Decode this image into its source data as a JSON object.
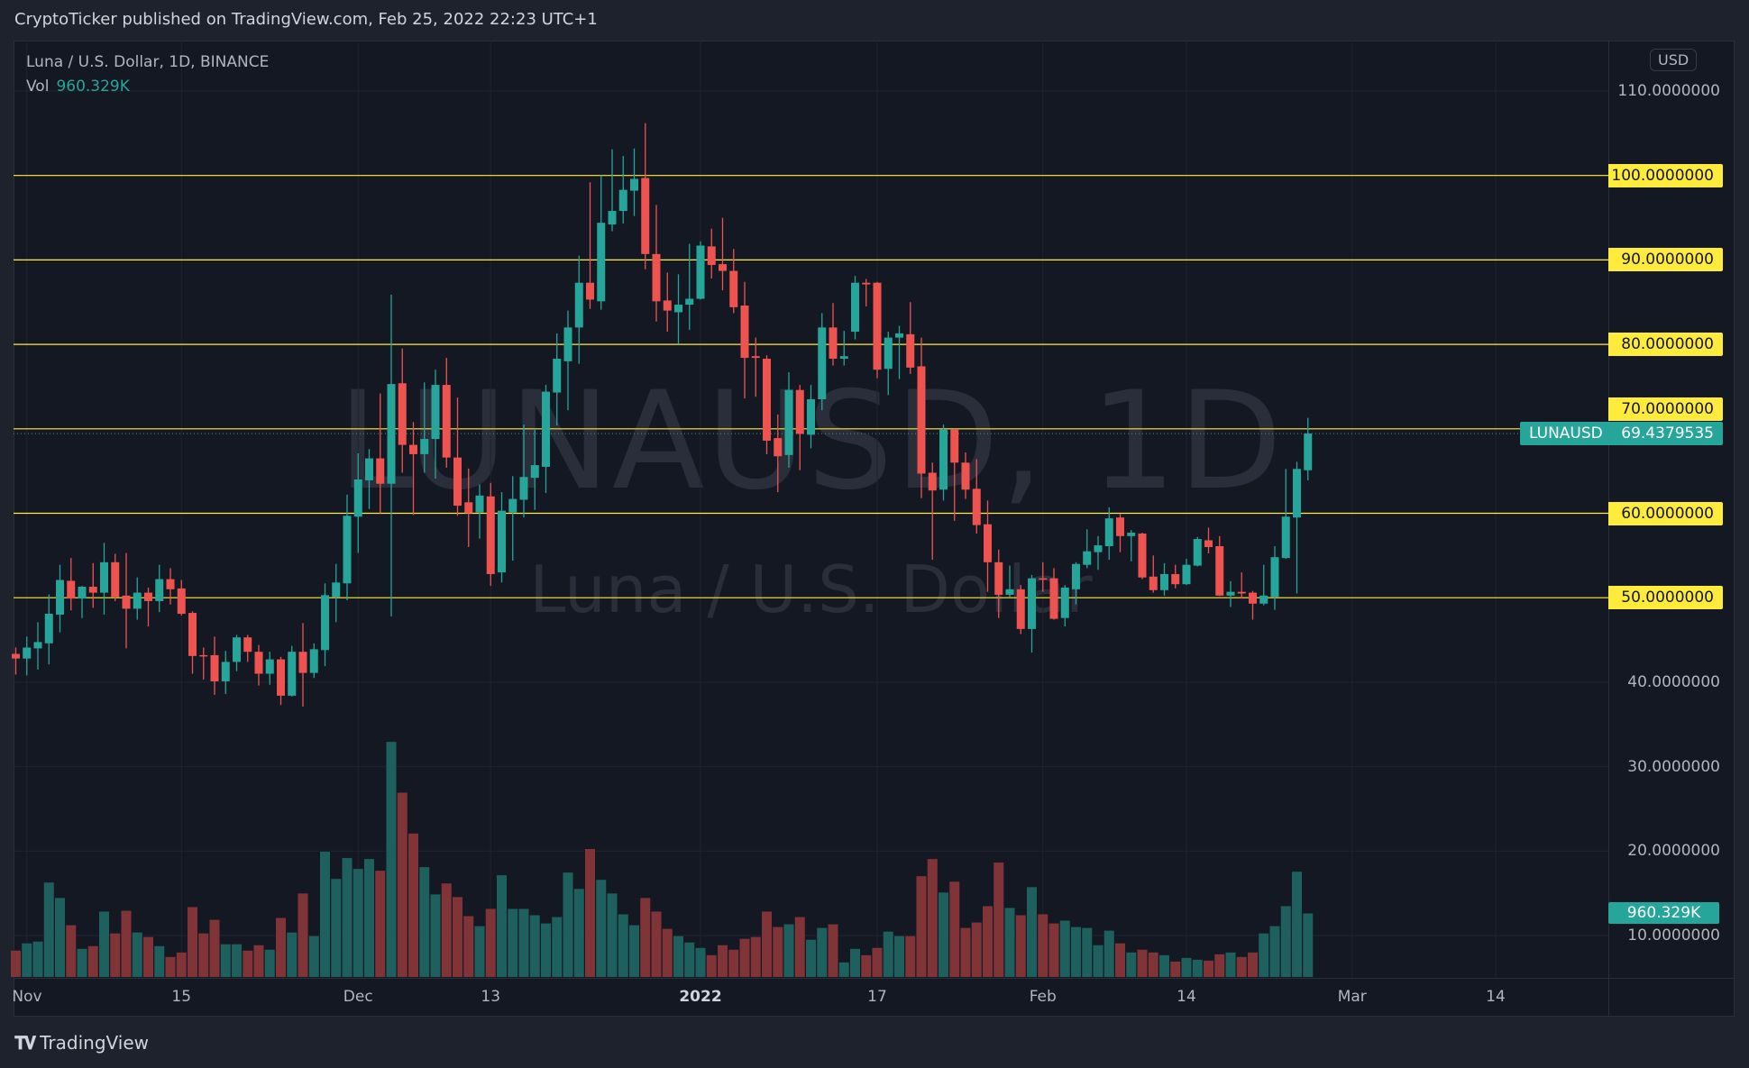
{
  "header": {
    "published": "CryptoTicker published on TradingView.com, Feb 25, 2022 22:23 UTC+1"
  },
  "legend": {
    "symbol": "Luna / U.S. Dollar, 1D, BINANCE",
    "vol_label": "Vol",
    "vol_value": "960.329K"
  },
  "watermark": {
    "line1": "LUNAUSD, 1D",
    "line2": "Luna / U.S. Dollar"
  },
  "price_axis": {
    "currency_button": "USD",
    "ticks": [
      "110.0000000",
      "100.0000000",
      "90.0000000",
      "80.0000000",
      "70.0000000",
      "60.0000000",
      "50.0000000",
      "40.0000000",
      "30.0000000",
      "20.0000000",
      "10.0000000"
    ],
    "last_price_symbol": "LUNAUSD",
    "last_price": "69.4379535",
    "volume_tag": "960.329K"
  },
  "time_axis": {
    "ticks": [
      "Nov",
      "15",
      "Dec",
      "13",
      "2022",
      "17",
      "Feb",
      "14",
      "Mar",
      "14"
    ]
  },
  "footer": {
    "brand": "TradingView",
    "logo": "TV"
  },
  "colors": {
    "up": "#26a69a",
    "down": "#ef5350",
    "up_volume": "#1d605e",
    "down_volume": "#813437",
    "level_line": "#ffeb3b",
    "background": "#141823"
  },
  "chart_data": {
    "type": "candlestick",
    "title": "Luna / U.S. Dollar, 1D, BINANCE",
    "ylim": [
      0,
      115
    ],
    "y_scale": "linear",
    "grid": true,
    "horizontal_levels": [
      50,
      60,
      70,
      80,
      90,
      100
    ],
    "last_price": 69.4379535,
    "candle_fields": [
      "date",
      "open",
      "high",
      "low",
      "close",
      "volume_k"
    ],
    "candles": [
      [
        "2021-10-31",
        43.35,
        44.1,
        40.9,
        42.8,
        398
      ],
      [
        "2021-11-01",
        42.8,
        45.4,
        40.8,
        44.1,
        508
      ],
      [
        "2021-11-02",
        44.0,
        47.1,
        41.5,
        44.75,
        535
      ],
      [
        "2021-11-03",
        44.6,
        50.4,
        42.1,
        48.1,
        1427
      ],
      [
        "2021-11-04",
        48.0,
        53.9,
        45.9,
        52.1,
        1194
      ],
      [
        "2021-11-05",
        52.0,
        54.7,
        48.5,
        49.9,
        782
      ],
      [
        "2021-11-06",
        49.9,
        51.4,
        47.6,
        51.3,
        425
      ],
      [
        "2021-11-07",
        51.3,
        54.1,
        48.8,
        50.6,
        466
      ],
      [
        "2021-11-08",
        50.6,
        56.5,
        48.0,
        54.2,
        988
      ],
      [
        "2021-11-09",
        54.2,
        55.2,
        49.6,
        50.1,
        658
      ],
      [
        "2021-11-10",
        50.25,
        55.3,
        44.0,
        48.7,
        1001
      ],
      [
        "2021-11-11",
        48.7,
        52.4,
        47.4,
        50.6,
        672
      ],
      [
        "2021-11-12",
        50.6,
        51.2,
        46.6,
        49.6,
        604
      ],
      [
        "2021-11-13",
        49.6,
        53.9,
        48.3,
        52.2,
        466
      ],
      [
        "2021-11-14",
        52.2,
        53.5,
        49.2,
        51.0,
        302
      ],
      [
        "2021-11-15",
        51.1,
        52.1,
        47.9,
        48.1,
        370
      ],
      [
        "2021-11-16",
        48.2,
        48.4,
        41.0,
        43.1,
        1056
      ],
      [
        "2021-11-17",
        43.2,
        44.1,
        40.3,
        43.1,
        658
      ],
      [
        "2021-11-18",
        43.2,
        45.4,
        38.5,
        40.1,
        864
      ],
      [
        "2021-11-19",
        40.1,
        43.7,
        38.6,
        42.4,
        494
      ],
      [
        "2021-11-20",
        42.4,
        45.6,
        41.3,
        45.3,
        494
      ],
      [
        "2021-11-21",
        45.3,
        45.6,
        42.4,
        43.6,
        398
      ],
      [
        "2021-11-22",
        43.6,
        44.4,
        39.6,
        41.0,
        480
      ],
      [
        "2021-11-23",
        41.0,
        43.6,
        39.7,
        42.7,
        412
      ],
      [
        "2021-11-24",
        42.7,
        43.0,
        37.3,
        38.4,
        892
      ],
      [
        "2021-11-25",
        38.4,
        44.3,
        38.3,
        43.6,
        672
      ],
      [
        "2021-11-26",
        43.6,
        47.0,
        37.1,
        41.1,
        1262
      ],
      [
        "2021-11-27",
        41.1,
        44.6,
        40.5,
        43.9,
        617
      ],
      [
        "2021-11-28",
        43.8,
        51.7,
        41.9,
        50.3,
        1893
      ],
      [
        "2021-11-29",
        50.1,
        54.0,
        47.1,
        51.8,
        1482
      ],
      [
        "2021-11-30",
        51.7,
        62.2,
        49.7,
        59.7,
        1797
      ],
      [
        "2021-12-01",
        59.6,
        67.1,
        55.3,
        64.0,
        1633
      ],
      [
        "2021-12-02",
        63.9,
        67.6,
        60.5,
        66.5,
        1783
      ],
      [
        "2021-12-03",
        66.5,
        74.2,
        60.0,
        63.5,
        1605
      ],
      [
        "2021-12-04",
        63.5,
        85.9,
        47.8,
        75.3,
        3553
      ],
      [
        "2021-12-05",
        75.4,
        79.5,
        64.8,
        68.1,
        2785
      ],
      [
        "2021-12-06",
        68.1,
        70.8,
        59.8,
        67.0,
        2168
      ],
      [
        "2021-12-07",
        67.0,
        75.5,
        64.8,
        68.8,
        1660
      ],
      [
        "2021-12-08",
        68.8,
        77.0,
        64.1,
        75.2,
        1248
      ],
      [
        "2021-12-09",
        75.2,
        78.4,
        65.4,
        66.6,
        1413
      ],
      [
        "2021-12-10",
        66.6,
        73.7,
        59.7,
        60.9,
        1207
      ],
      [
        "2021-12-11",
        61.3,
        65.3,
        56.0,
        60.0,
        919
      ],
      [
        "2021-12-12",
        60.1,
        63.4,
        57.0,
        62.1,
        768
      ],
      [
        "2021-12-13",
        62.0,
        63.6,
        51.4,
        52.8,
        1029
      ],
      [
        "2021-12-14",
        53.0,
        62.5,
        51.8,
        60.3,
        1537
      ],
      [
        "2021-12-15",
        60.1,
        64.4,
        54.4,
        61.7,
        1029
      ],
      [
        "2021-12-16",
        61.6,
        70.5,
        59.5,
        64.3,
        1029
      ],
      [
        "2021-12-17",
        64.2,
        70.0,
        60.4,
        65.7,
        933
      ],
      [
        "2021-12-18",
        65.5,
        75.2,
        62.4,
        74.4,
        809
      ],
      [
        "2021-12-19",
        74.3,
        81.3,
        70.4,
        78.3,
        905
      ],
      [
        "2021-12-20",
        78.0,
        84.0,
        72.2,
        82.0,
        1578
      ],
      [
        "2021-12-21",
        82.0,
        90.5,
        77.7,
        87.3,
        1331
      ],
      [
        "2021-12-22",
        87.3,
        99.2,
        84.2,
        85.3,
        1934
      ],
      [
        "2021-12-23",
        85.1,
        100.0,
        84.1,
        94.4,
        1468
      ],
      [
        "2021-12-24",
        94.2,
        103.1,
        93.4,
        95.8,
        1262
      ],
      [
        "2021-12-25",
        95.8,
        102.3,
        94.3,
        98.3,
        947
      ],
      [
        "2021-12-26",
        98.2,
        103.2,
        95.2,
        99.6,
        782
      ],
      [
        "2021-12-27",
        99.7,
        106.2,
        88.9,
        90.7,
        1194
      ],
      [
        "2021-12-28",
        90.7,
        96.5,
        82.7,
        85.1,
        988
      ],
      [
        "2021-12-29",
        85.2,
        88.5,
        81.5,
        84.0,
        727
      ],
      [
        "2021-12-30",
        83.8,
        88.3,
        80.1,
        84.7,
        617
      ],
      [
        "2021-12-31",
        84.7,
        91.9,
        81.7,
        85.4,
        521
      ],
      [
        "2022-01-01",
        85.4,
        92.2,
        85.3,
        91.7,
        439
      ],
      [
        "2022-01-02",
        91.6,
        93.7,
        87.8,
        89.4,
        329
      ],
      [
        "2022-01-03",
        89.5,
        95.0,
        86.4,
        88.7,
        480
      ],
      [
        "2022-01-04",
        88.7,
        91.3,
        83.7,
        84.4,
        412
      ],
      [
        "2022-01-05",
        84.6,
        87.4,
        73.6,
        78.4,
        576
      ],
      [
        "2022-01-06",
        78.6,
        80.8,
        73.8,
        78.4,
        604
      ],
      [
        "2022-01-07",
        78.3,
        78.7,
        67.0,
        68.6,
        988
      ],
      [
        "2022-01-08",
        68.9,
        71.7,
        62.5,
        66.75,
        755
      ],
      [
        "2022-01-09",
        66.9,
        76.7,
        65.4,
        74.6,
        796
      ],
      [
        "2022-01-10",
        74.6,
        75.2,
        65.1,
        69.4,
        905
      ],
      [
        "2022-01-11",
        69.3,
        75.2,
        67.7,
        73.5,
        562
      ],
      [
        "2022-01-12",
        73.5,
        83.7,
        72.2,
        82.0,
        741
      ],
      [
        "2022-01-13",
        82.0,
        84.9,
        77.5,
        78.3,
        796
      ],
      [
        "2022-01-14",
        78.3,
        81.6,
        77.5,
        78.6,
        220
      ],
      [
        "2022-01-15",
        81.5,
        88.1,
        80.6,
        87.3,
        425
      ],
      [
        "2022-01-16",
        87.3,
        87.75,
        84.5,
        87.1,
        329
      ],
      [
        "2022-01-17",
        87.3,
        87.4,
        76.0,
        77.0,
        439
      ],
      [
        "2022-01-18",
        77.1,
        81.5,
        74.0,
        80.8,
        686
      ],
      [
        "2022-01-19",
        80.8,
        82.2,
        75.9,
        81.3,
        617
      ],
      [
        "2022-01-20",
        81.2,
        85.0,
        76.5,
        77.25,
        617
      ],
      [
        "2022-01-21",
        77.4,
        80.8,
        61.8,
        64.7,
        1523
      ],
      [
        "2022-01-22",
        64.8,
        66.0,
        54.5,
        62.7,
        1783
      ],
      [
        "2022-01-23",
        62.8,
        70.5,
        61.5,
        69.9,
        1276
      ],
      [
        "2022-01-24",
        69.9,
        70.0,
        59.1,
        66.0,
        1440
      ],
      [
        "2022-01-25",
        66.0,
        67.2,
        61.7,
        62.8,
        741
      ],
      [
        "2022-01-26",
        62.9,
        66.4,
        57.6,
        58.6,
        823
      ],
      [
        "2022-01-27",
        58.7,
        61.5,
        50.7,
        54.2,
        1070
      ],
      [
        "2022-01-28",
        54.2,
        55.7,
        47.6,
        50.35,
        1729
      ],
      [
        "2022-01-29",
        50.35,
        53.8,
        50.1,
        51.0,
        1043
      ],
      [
        "2022-01-30",
        51.0,
        51.5,
        45.7,
        46.3,
        933
      ],
      [
        "2022-01-31",
        46.3,
        52.7,
        43.5,
        52.3,
        1358
      ],
      [
        "2022-02-01",
        52.3,
        54.2,
        50.7,
        52.2,
        947
      ],
      [
        "2022-02-02",
        52.3,
        53.5,
        47.4,
        47.5,
        809
      ],
      [
        "2022-02-03",
        47.6,
        51.5,
        46.6,
        51.2,
        851
      ],
      [
        "2022-02-04",
        51.0,
        54.2,
        49.2,
        54.0,
        755
      ],
      [
        "2022-02-05",
        53.9,
        58.1,
        53.5,
        55.5,
        741
      ],
      [
        "2022-02-06",
        55.4,
        57.3,
        53.3,
        56.2,
        480
      ],
      [
        "2022-02-07",
        56.1,
        60.7,
        54.5,
        59.4,
        700
      ],
      [
        "2022-02-08",
        59.5,
        59.9,
        55.4,
        57.3,
        508
      ],
      [
        "2022-02-09",
        57.3,
        58.0,
        54.3,
        57.7,
        370
      ],
      [
        "2022-02-10",
        57.6,
        57.7,
        52.2,
        52.4,
        412
      ],
      [
        "2022-02-11",
        52.5,
        55.0,
        50.6,
        50.9,
        370
      ],
      [
        "2022-02-12",
        50.9,
        54.1,
        50.25,
        52.8,
        329
      ],
      [
        "2022-02-13",
        52.8,
        53.9,
        51.1,
        51.6,
        233
      ],
      [
        "2022-02-14",
        51.6,
        54.6,
        51.5,
        53.9,
        288
      ],
      [
        "2022-02-15",
        53.8,
        57.2,
        53.7,
        56.95,
        261
      ],
      [
        "2022-02-16",
        56.8,
        58.3,
        55.25,
        56.0,
        247
      ],
      [
        "2022-02-17",
        56.1,
        57.3,
        50.2,
        50.25,
        343
      ],
      [
        "2022-02-18",
        50.25,
        51.95,
        48.9,
        50.7,
        370
      ],
      [
        "2022-02-19",
        50.7,
        53.0,
        49.9,
        50.5,
        302
      ],
      [
        "2022-02-20",
        50.6,
        50.8,
        47.4,
        49.3,
        370
      ],
      [
        "2022-02-21",
        49.3,
        53.9,
        49.1,
        50.25,
        658
      ],
      [
        "2022-02-22",
        50.1,
        56.1,
        48.55,
        54.8,
        768
      ],
      [
        "2022-02-23",
        54.7,
        65.25,
        54.6,
        59.6,
        1070
      ],
      [
        "2022-02-24",
        59.5,
        66.1,
        50.5,
        65.25,
        1591
      ],
      [
        "2022-02-25",
        65.1,
        71.3,
        63.9,
        69.44,
        960.329
      ]
    ]
  }
}
